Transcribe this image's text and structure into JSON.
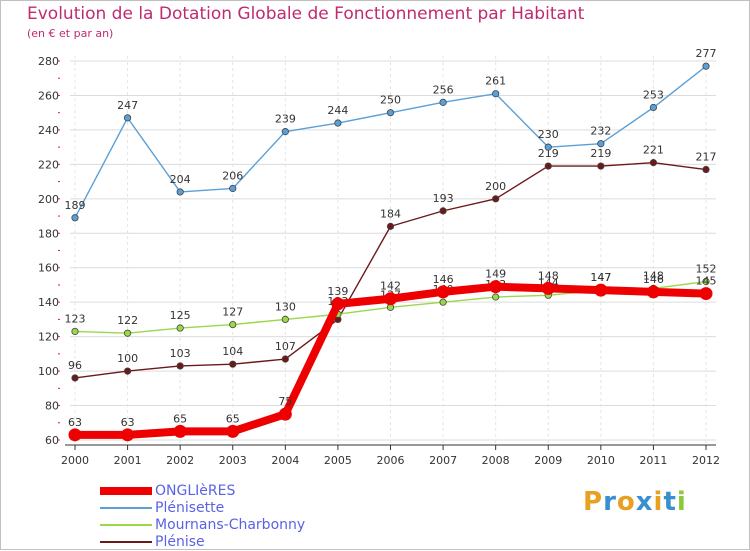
{
  "chart_data": {
    "type": "line",
    "title": "Evolution de la Dotation Globale de Fonctionnement par Habitant",
    "subtitle": "(en € et par an)",
    "xlabel": "",
    "ylabel": "",
    "categories": [
      "2000",
      "2001",
      "2002",
      "2003",
      "2004",
      "2005",
      "2006",
      "2007",
      "2008",
      "2009",
      "2010",
      "2011",
      "2012"
    ],
    "ylim": [
      60,
      280
    ],
    "yticks": [
      60,
      80,
      100,
      120,
      140,
      160,
      180,
      200,
      220,
      240,
      260,
      280
    ],
    "grid": true,
    "legend_position": "bottom-left",
    "series": [
      {
        "name": "Plénise",
        "color": "#6b1a1a",
        "values": [
          96,
          100,
          103,
          104,
          107,
          130,
          184,
          193,
          200,
          219,
          219,
          221,
          217
        ],
        "labels": [
          "96",
          "100",
          "103",
          "104",
          "107",
          "",
          "184",
          "193",
          "200",
          "219",
          "219",
          "221",
          "217"
        ]
      },
      {
        "name": "Mournans-Charbonny",
        "color": "#9ad84a",
        "values": [
          123,
          122,
          125,
          127,
          130,
          133,
          137,
          140,
          143,
          144,
          147,
          148,
          152
        ],
        "labels": [
          "123",
          "122",
          "125",
          "127",
          "130",
          "133",
          "137",
          "140",
          "143",
          "144",
          "147",
          "148",
          "152"
        ]
      },
      {
        "name": "Plénisette",
        "color": "#5aa0d8",
        "values": [
          189,
          247,
          204,
          206,
          239,
          244,
          250,
          256,
          261,
          230,
          232,
          253,
          277
        ],
        "labels": [
          "189",
          "247",
          "204",
          "206",
          "239",
          "244",
          "250",
          "256",
          "261",
          "230",
          "232",
          "253",
          "277"
        ]
      },
      {
        "name": "ONGLIèRES",
        "color": "#ee0000",
        "values": [
          63,
          63,
          65,
          65,
          75,
          139,
          142,
          146,
          149,
          148,
          147,
          146,
          145
        ],
        "labels": [
          "63",
          "63",
          "65",
          "65",
          "75",
          "139",
          "142",
          "146",
          "149",
          "148",
          "147",
          "146",
          "145"
        ]
      }
    ],
    "legend_order": [
      "ONGLIèRES",
      "Plénisette",
      "Mournans-Charbonny",
      "Plénise"
    ]
  },
  "branding": {
    "logo_text": "Proxiti",
    "logo_colors": [
      "#e8a020",
      "#3a8fd0",
      "#e8a020",
      "#3a8fd0",
      "#e8a020",
      "#3a8fd0",
      "#8cc83c"
    ]
  }
}
